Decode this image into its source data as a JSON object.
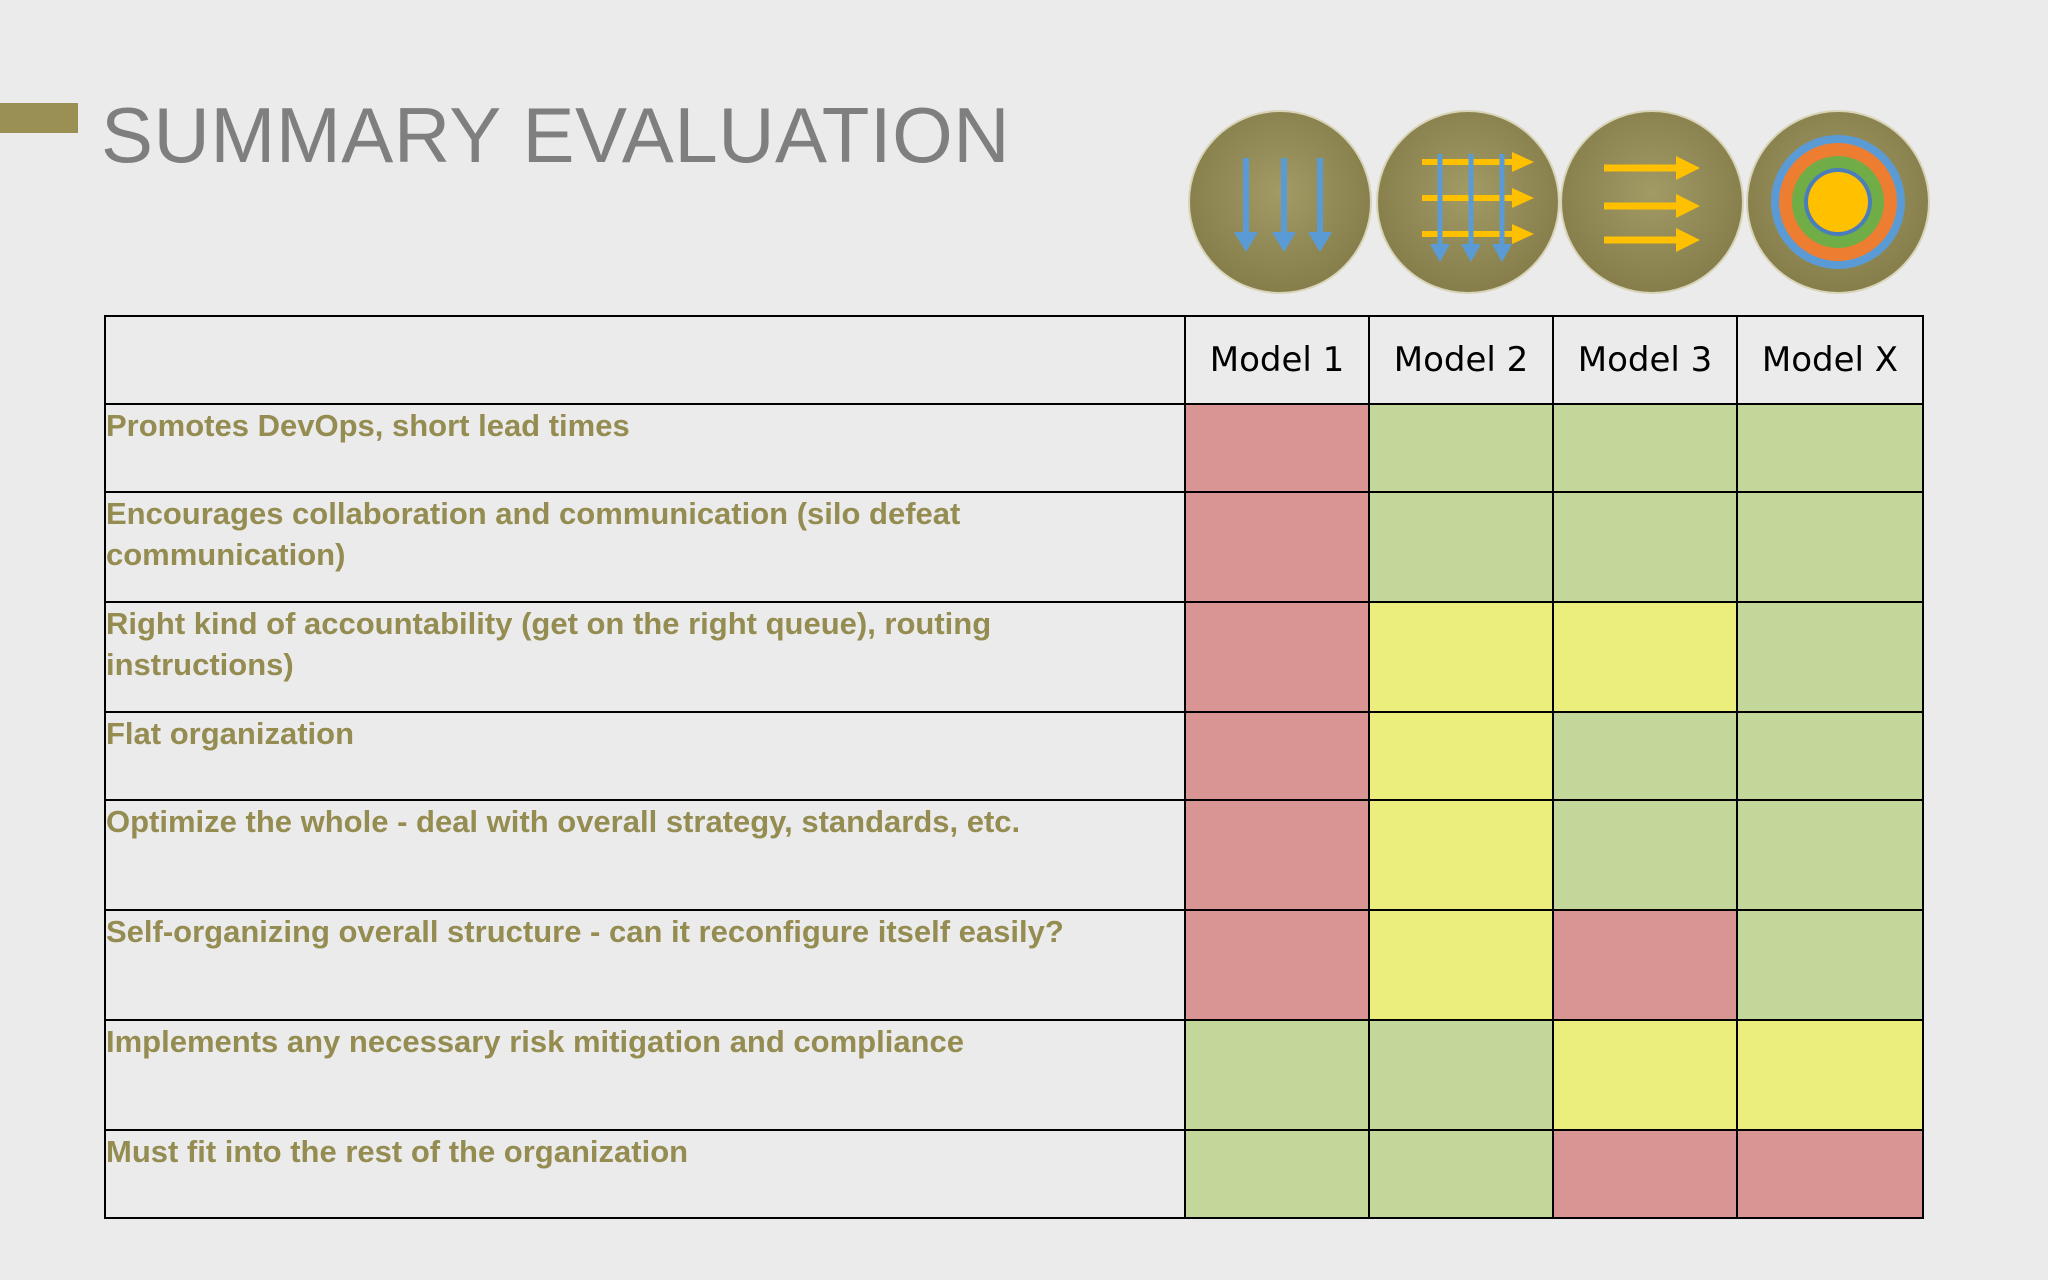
{
  "slide": {
    "title": "SUMMARY EVALUATION"
  },
  "colors": {
    "accent": "#9a9053",
    "red": "#d99594",
    "green": "#c4d79b",
    "yellow": "#ebed7d",
    "criterion_text": "#948c50"
  },
  "icons": [
    {
      "name": "model-1-vertical-arrows-icon"
    },
    {
      "name": "model-2-grid-arrows-icon"
    },
    {
      "name": "model-3-horizontal-arrows-icon"
    },
    {
      "name": "model-x-concentric-circles-icon"
    }
  ],
  "table": {
    "columns": [
      "Model 1",
      "Model 2",
      "Model 3",
      "Model X"
    ],
    "rows": [
      {
        "criterion": "Promotes DevOps, short lead times",
        "ratings": [
          "red",
          "green",
          "green",
          "green"
        ]
      },
      {
        "criterion": "Encourages collaboration and communication (silo defeat communication)",
        "ratings": [
          "red",
          "green",
          "green",
          "green"
        ]
      },
      {
        "criterion": "Right kind of accountability (get on the right queue), routing instructions)",
        "ratings": [
          "red",
          "yellow",
          "yellow",
          "green"
        ]
      },
      {
        "criterion": "Flat organization",
        "ratings": [
          "red",
          "yellow",
          "green",
          "green"
        ]
      },
      {
        "criterion": "Optimize the whole - deal with overall strategy, standards, etc.",
        "ratings": [
          "red",
          "yellow",
          "green",
          "green"
        ]
      },
      {
        "criterion": "Self-organizing overall structure - can it reconfigure itself easily?",
        "ratings": [
          "red",
          "yellow",
          "red",
          "green"
        ]
      },
      {
        "criterion": "Implements any necessary risk mitigation and compliance",
        "ratings": [
          "green",
          "green",
          "yellow",
          "yellow"
        ]
      },
      {
        "criterion": "Must fit into the rest of the organization",
        "ratings": [
          "green",
          "green",
          "red",
          "red"
        ]
      }
    ]
  }
}
